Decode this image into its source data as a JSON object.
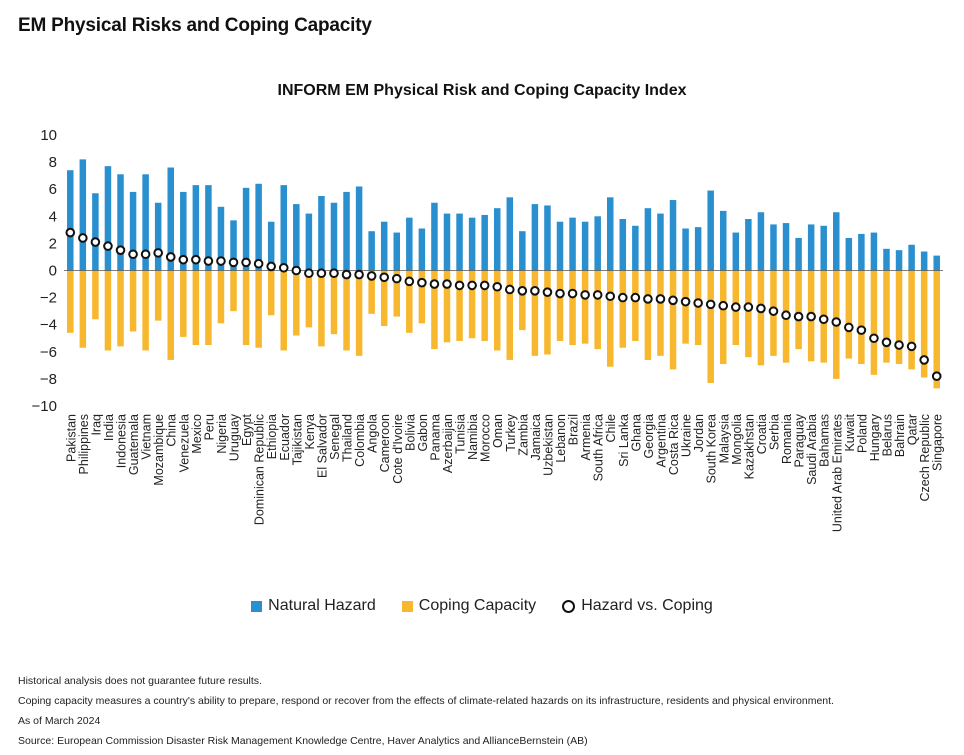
{
  "page_title": "EM Physical Risks and Coping Capacity",
  "legend": {
    "natural_hazard": "Natural Hazard",
    "coping_capacity": "Coping Capacity",
    "hazard_vs_coping": "Hazard vs. Coping"
  },
  "notes": {
    "line1": "Historical analysis does not guarantee future results.",
    "line2": "Coping capacity measures a country's ability to prepare, respond or recover from the effects of climate-related hazards on its infrastructure, residents and physical environment.",
    "line3": "As of March 2024",
    "line4": "Source: European Commission Disaster Risk Management Knowledge Centre, Haver Analytics and AllianceBernstein (AB)"
  },
  "colors": {
    "natural_hazard": "#2a8fce",
    "coping_capacity": "#f7b82f",
    "marker": "#111111"
  },
  "chart_data": {
    "type": "bar",
    "title": "INFORM EM Physical Risk and Coping Capacity Index",
    "ylim": [
      -10,
      10
    ],
    "yticks": [
      10,
      8,
      6,
      4,
      2,
      0,
      -2,
      -4,
      -6,
      -8,
      -10
    ],
    "grid": false,
    "legend_position": "bottom",
    "categories": [
      "Pakistan",
      "Philippines",
      "Iraq",
      "India",
      "Indonesia",
      "Guatemala",
      "Vietnam",
      "Mozambique",
      "China",
      "Venezuela",
      "Mexico",
      "Peru",
      "Nigeria",
      "Uruguay",
      "Egypt",
      "Dominican Republic",
      "Ethiopia",
      "Ecuador",
      "Tajikistan",
      "Kenya",
      "El Salvador",
      "Senegal",
      "Thailand",
      "Colombia",
      "Angola",
      "Cameroon",
      "Cote d'Ivoire",
      "Bolivia",
      "Gabon",
      "Panama",
      "Azerbaijan",
      "Tunisia",
      "Namibia",
      "Morocco",
      "Oman",
      "Turkey",
      "Zambia",
      "Jamaica",
      "Uzbekistan",
      "Lebanon",
      "Brazil",
      "Armenia",
      "South Africa",
      "Chile",
      "Sri Lanka",
      "Ghana",
      "Georgia",
      "Argentina",
      "Costa Rica",
      "Ukraine",
      "Jordan",
      "South Korea",
      "Malaysia",
      "Mongolia",
      "Kazakhstan",
      "Croatia",
      "Serbia",
      "Romania",
      "Paraguay",
      "Saudi Arabia",
      "Bahamas",
      "United Arab Emirates",
      "Kuwait",
      "Poland",
      "Hungary",
      "Belarus",
      "Bahrain",
      "Qatar",
      "Czech Republic",
      "Singapore"
    ],
    "series": [
      {
        "name": "Natural Hazard",
        "type": "bar",
        "values": [
          7.4,
          8.2,
          5.7,
          7.7,
          7.1,
          5.8,
          7.1,
          5.0,
          7.6,
          5.8,
          6.3,
          6.3,
          4.7,
          3.7,
          6.1,
          6.4,
          3.6,
          6.3,
          4.9,
          4.2,
          5.5,
          5.0,
          5.8,
          6.2,
          2.9,
          3.6,
          2.8,
          3.9,
          3.1,
          5.0,
          4.2,
          4.2,
          3.9,
          4.1,
          4.6,
          5.4,
          2.9,
          4.9,
          4.8,
          3.6,
          3.9,
          3.6,
          4.0,
          5.4,
          3.8,
          3.3,
          4.6,
          4.2,
          5.2,
          3.1,
          3.2,
          5.9,
          4.4,
          2.8,
          3.8,
          4.3,
          3.4,
          3.5,
          2.4,
          3.4,
          3.3,
          4.3,
          2.4,
          2.7,
          2.8,
          1.6,
          1.5,
          1.9,
          1.4,
          1.1
        ]
      },
      {
        "name": "Coping Capacity",
        "type": "bar",
        "values": [
          -4.6,
          -5.7,
          -3.6,
          -5.9,
          -5.6,
          -4.5,
          -5.9,
          -3.7,
          -6.6,
          -4.9,
          -5.5,
          -5.5,
          -3.9,
          -3.0,
          -5.5,
          -5.7,
          -3.3,
          -5.9,
          -4.8,
          -4.2,
          -5.6,
          -4.7,
          -5.9,
          -6.3,
          -3.2,
          -4.1,
          -3.4,
          -4.6,
          -3.9,
          -5.8,
          -5.3,
          -5.2,
          -5.0,
          -5.2,
          -5.9,
          -6.6,
          -4.4,
          -6.3,
          -6.2,
          -5.2,
          -5.5,
          -5.4,
          -5.8,
          -7.1,
          -5.7,
          -5.2,
          -6.6,
          -6.3,
          -7.3,
          -5.4,
          -5.5,
          -8.3,
          -6.9,
          -5.5,
          -6.4,
          -7.0,
          -6.3,
          -6.8,
          -5.8,
          -6.7,
          -6.8,
          -8.0,
          -6.5,
          -6.9,
          -7.7,
          -6.8,
          -6.9,
          -7.3,
          -7.9,
          -8.7
        ]
      },
      {
        "name": "Hazard vs. Coping",
        "type": "scatter",
        "values": [
          2.8,
          2.4,
          2.1,
          1.8,
          1.5,
          1.2,
          1.2,
          1.3,
          1.0,
          0.8,
          0.8,
          0.7,
          0.7,
          0.6,
          0.6,
          0.5,
          0.3,
          0.2,
          0.0,
          -0.2,
          -0.2,
          -0.2,
          -0.3,
          -0.3,
          -0.4,
          -0.5,
          -0.6,
          -0.8,
          -0.9,
          -1.0,
          -1.0,
          -1.1,
          -1.1,
          -1.1,
          -1.2,
          -1.4,
          -1.5,
          -1.5,
          -1.6,
          -1.7,
          -1.7,
          -1.8,
          -1.8,
          -1.9,
          -2.0,
          -2.0,
          -2.1,
          -2.1,
          -2.2,
          -2.3,
          -2.4,
          -2.5,
          -2.6,
          -2.7,
          -2.7,
          -2.8,
          -3.0,
          -3.3,
          -3.4,
          -3.4,
          -3.6,
          -3.8,
          -4.2,
          -4.4,
          -5.0,
          -5.3,
          -5.5,
          -5.6,
          -6.6,
          -7.8
        ]
      }
    ]
  }
}
